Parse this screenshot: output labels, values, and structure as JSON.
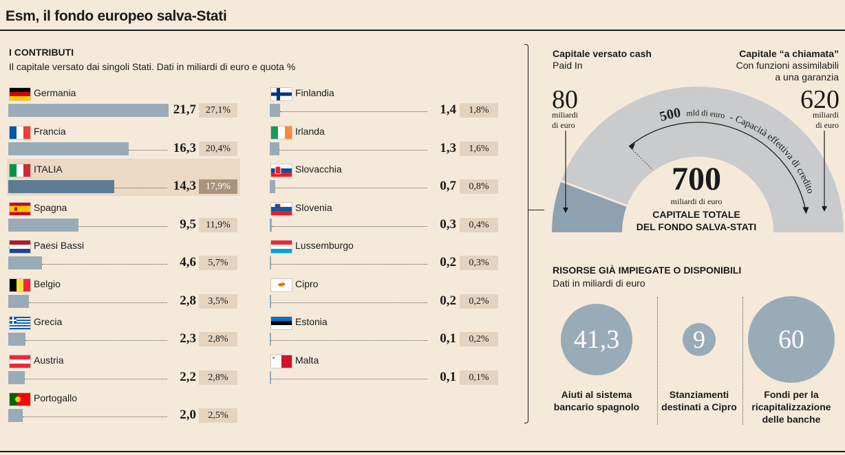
{
  "header": {
    "title": "Esm, il fondo europeo salva-Stati"
  },
  "contributions": {
    "title": "I CONTRIBUTI",
    "subtitle": "Il capitale versato dai singoli Stati. Dati in miliardi di euro e quota %"
  },
  "chart_data": {
    "type": "bar",
    "title": "I CONTRIBUTI",
    "subtitle": "Il capitale versato dai singoli Stati. Dati in miliardi di euro e quota %",
    "unit": "miliardi di euro",
    "highlight": "ITALIA",
    "countries": [
      {
        "name": "Germania",
        "value": 21.7,
        "value_label": "21,7",
        "share_label": "27,1%",
        "flag": "germany-flag"
      },
      {
        "name": "Francia",
        "value": 16.3,
        "value_label": "16,3",
        "share_label": "20,4%",
        "flag": "france-flag"
      },
      {
        "name": "ITALIA",
        "value": 14.3,
        "value_label": "14,3",
        "share_label": "17,9%",
        "flag": "italy-flag"
      },
      {
        "name": "Spagna",
        "value": 9.5,
        "value_label": "9,5",
        "share_label": "11,9%",
        "flag": "spain-flag"
      },
      {
        "name": "Paesi Bassi",
        "value": 4.6,
        "value_label": "4,6",
        "share_label": "5,7%",
        "flag": "netherlands-flag"
      },
      {
        "name": "Belgio",
        "value": 2.8,
        "value_label": "2,8",
        "share_label": "3,5%",
        "flag": "belgium-flag"
      },
      {
        "name": "Grecia",
        "value": 2.3,
        "value_label": "2,3",
        "share_label": "2,8%",
        "flag": "greece-flag"
      },
      {
        "name": "Austria",
        "value": 2.2,
        "value_label": "2,2",
        "share_label": "2,8%",
        "flag": "austria-flag"
      },
      {
        "name": "Portogallo",
        "value": 2.0,
        "value_label": "2,0",
        "share_label": "2,5%",
        "flag": "portugal-flag"
      },
      {
        "name": "Finlandia",
        "value": 1.4,
        "value_label": "1,4",
        "share_label": "1,8%",
        "flag": "finland-flag"
      },
      {
        "name": "Irlanda",
        "value": 1.3,
        "value_label": "1,3",
        "share_label": "1,6%",
        "flag": "ireland-flag"
      },
      {
        "name": "Slovacchia",
        "value": 0.7,
        "value_label": "0,7",
        "share_label": "0,8%",
        "flag": "slovakia-flag"
      },
      {
        "name": "Slovenia",
        "value": 0.3,
        "value_label": "0,3",
        "share_label": "0,4%",
        "flag": "slovenia-flag"
      },
      {
        "name": "Lussemburgo",
        "value": 0.2,
        "value_label": "0,2",
        "share_label": "0,3%",
        "flag": "luxembourg-flag"
      },
      {
        "name": "Cipro",
        "value": 0.2,
        "value_label": "0,2",
        "share_label": "0,2%",
        "flag": "cyprus-flag"
      },
      {
        "name": "Estonia",
        "value": 0.1,
        "value_label": "0,1",
        "share_label": "0,2%",
        "flag": "estonia-flag"
      },
      {
        "name": "Malta",
        "value": 0.1,
        "value_label": "0,1",
        "share_label": "0,1%",
        "flag": "malta-flag"
      }
    ]
  },
  "capital": {
    "paid": {
      "title": "Capitale versato cash",
      "subtitle": "Paid In",
      "value": 80,
      "value_label": "80",
      "unit_line1": "miliardi",
      "unit_line2": "di euro"
    },
    "callable": {
      "title": "Capitale “a chiamata”",
      "subtitle_line1": "Con funzioni assimilabili",
      "subtitle_line2": "a una garanzia",
      "value": 620,
      "value_label": "620",
      "unit_line1": "miliardi",
      "unit_line2": "di euro"
    },
    "total": {
      "value": 700,
      "value_label": "700",
      "unit": "miliardi di euro",
      "caption_line1": "CAPITALE TOTALE",
      "caption_line2": "DEL FONDO SALVA-STATI"
    },
    "capacity": {
      "value": 500,
      "value_label": "500",
      "unit": "mld di euro",
      "caption": "- Capacità effettiva di credito"
    },
    "colors": {
      "paid": "#8ea1b0",
      "callable": "#c9cbcc"
    }
  },
  "resources": {
    "title": "RISORSE GIÀ IMPIEGATE O DISPONIBILI",
    "subtitle": "Dati in miliardi di euro",
    "items": [
      {
        "value": 41.3,
        "value_label": "41,3",
        "caption_lines": [
          "Aiuti al sistema",
          "bancario spagnolo"
        ]
      },
      {
        "value": 9,
        "value_label": "9",
        "caption_lines": [
          "Stanziamenti",
          "destinati a Cipro"
        ]
      },
      {
        "value": 60,
        "value_label": "60",
        "caption_lines": [
          "Fondi per la",
          "ricapitalizzazione",
          "delle banche"
        ]
      }
    ]
  },
  "colors": {
    "background": "#f5e9da",
    "bar": "#9aabb8",
    "bar_highlight": "#5d7b94",
    "share_box": "#e3d3bf",
    "share_box_highlight": "#a9937d",
    "highlight_row": "#ebd9c3"
  }
}
